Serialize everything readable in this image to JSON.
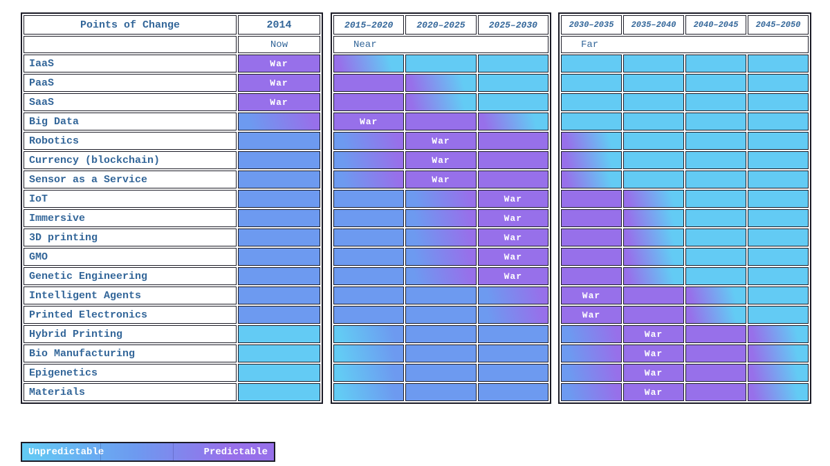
{
  "colors": {
    "unpredictable_cyan": "#63cbf4",
    "mid_blue": "#6d9af0",
    "predictable_purple": "#9770ea",
    "label_text": "#336699",
    "grid_line": "#1b1b26",
    "war_text": "#ffffff"
  },
  "legend": {
    "left_label": "Unpredictable",
    "right_label": "Predictable"
  },
  "chart_data": {
    "type": "heatmap",
    "title": "Points of Change",
    "value_meaning": "cell color encodes predictability: C=cyan unpredictable, B=blue intermediate, P=purple predictable; 'War' marks the competitive-war period; PC/BP/CB are gradient transitions",
    "col_groups": [
      {
        "label": "Now",
        "columns": [
          "2014"
        ]
      },
      {
        "label": "Near",
        "columns": [
          "2015–2020",
          "2020–2025",
          "2025–2030"
        ]
      },
      {
        "label": "Far",
        "columns": [
          "2030–2035",
          "2035–2040",
          "2040–2045",
          "2045–2050"
        ]
      }
    ],
    "rows": [
      {
        "label": "IaaS",
        "cells": [
          "P:War",
          "PC",
          "C",
          "C",
          "C",
          "C",
          "C",
          "C"
        ]
      },
      {
        "label": "PaaS",
        "cells": [
          "P:War",
          "P",
          "PC",
          "C",
          "C",
          "C",
          "C",
          "C"
        ]
      },
      {
        "label": "SaaS",
        "cells": [
          "P:War",
          "P",
          "PC",
          "C",
          "C",
          "C",
          "C",
          "C"
        ]
      },
      {
        "label": "Big Data",
        "cells": [
          "BP",
          "P:War",
          "P",
          "PC",
          "C",
          "C",
          "C",
          "C"
        ]
      },
      {
        "label": "Robotics",
        "cells": [
          "B",
          "BP",
          "P:War",
          "P",
          "PC",
          "C",
          "C",
          "C"
        ]
      },
      {
        "label": "Currency (blockchain)",
        "cells": [
          "B",
          "BP",
          "P:War",
          "P",
          "PC",
          "C",
          "C",
          "C"
        ]
      },
      {
        "label": "Sensor as a Service",
        "cells": [
          "B",
          "BP",
          "P:War",
          "P",
          "PC",
          "C",
          "C",
          "C"
        ]
      },
      {
        "label": "IoT",
        "cells": [
          "B",
          "B",
          "BP",
          "P:War",
          "P",
          "PC",
          "C",
          "C"
        ]
      },
      {
        "label": "Immersive",
        "cells": [
          "B",
          "B",
          "BP",
          "P:War",
          "P",
          "PC",
          "C",
          "C"
        ]
      },
      {
        "label": "3D printing",
        "cells": [
          "B",
          "B",
          "BP",
          "P:War",
          "P",
          "PC",
          "C",
          "C"
        ]
      },
      {
        "label": "GMO",
        "cells": [
          "B",
          "B",
          "BP",
          "P:War",
          "P",
          "PC",
          "C",
          "C"
        ]
      },
      {
        "label": "Genetic Engineering",
        "cells": [
          "B",
          "B",
          "BP",
          "P:War",
          "P",
          "PC",
          "C",
          "C"
        ]
      },
      {
        "label": "Intelligent Agents",
        "cells": [
          "B",
          "B",
          "B",
          "BP",
          "P:War",
          "P",
          "PC",
          "C"
        ]
      },
      {
        "label": "Printed Electronics",
        "cells": [
          "B",
          "B",
          "B",
          "BP",
          "P:War",
          "P",
          "PC",
          "C"
        ]
      },
      {
        "label": "Hybrid Printing",
        "cells": [
          "C",
          "CB",
          "B",
          "B",
          "BP",
          "P:War",
          "P",
          "PC"
        ]
      },
      {
        "label": "Bio Manufacturing",
        "cells": [
          "C",
          "CB",
          "B",
          "B",
          "BP",
          "P:War",
          "P",
          "PC"
        ]
      },
      {
        "label": "Epigenetics",
        "cells": [
          "C",
          "CB",
          "B",
          "B",
          "BP",
          "P:War",
          "P",
          "PC"
        ]
      },
      {
        "label": "Materials",
        "cells": [
          "C",
          "CB",
          "B",
          "B",
          "BP",
          "P:War",
          "P",
          "PC"
        ]
      }
    ]
  }
}
